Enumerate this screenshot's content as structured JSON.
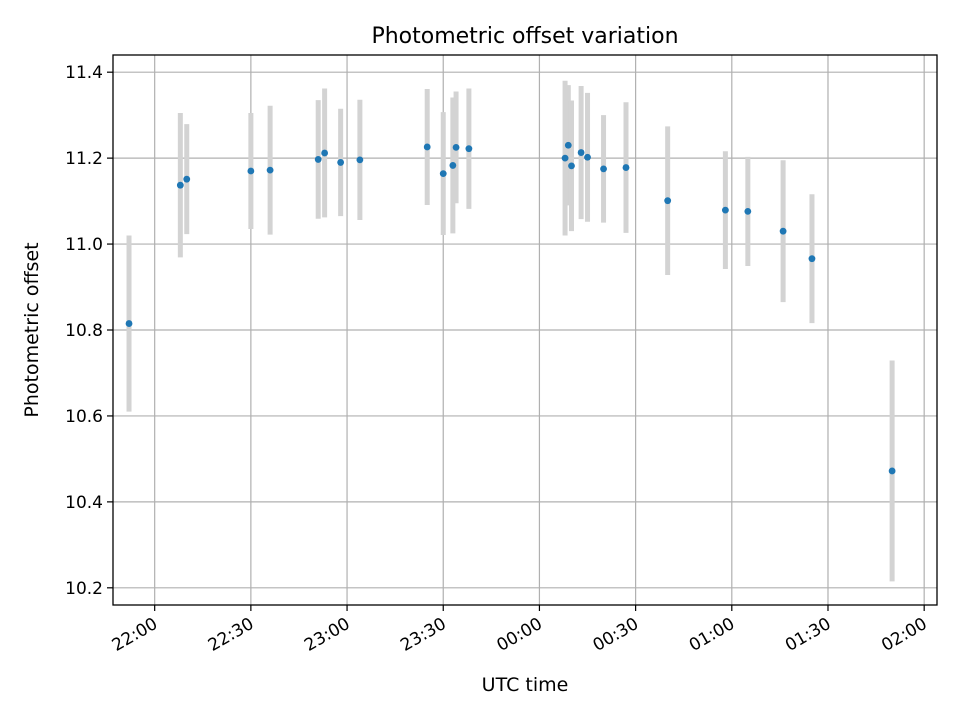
{
  "chart_data": {
    "type": "scatter",
    "title": "Photometric offset variation",
    "xlabel": "UTC time",
    "ylabel": "Photometric offset",
    "xlim": [
      "21:47",
      "02:04"
    ],
    "ylim": [
      10.16,
      11.44
    ],
    "x_ticks": [
      "22:00",
      "22:30",
      "23:00",
      "23:30",
      "00:00",
      "00:30",
      "01:00",
      "01:30",
      "02:00"
    ],
    "y_ticks": [
      "10.2",
      "10.4",
      "10.6",
      "10.8",
      "11.0",
      "11.2",
      "11.4"
    ],
    "grid": true,
    "colors": {
      "marker": "#1f77b4",
      "errorbar": "#d3d3d3"
    },
    "points": [
      {
        "time": "21:52",
        "y": 10.815,
        "err": 0.205
      },
      {
        "time": "22:08",
        "y": 11.137,
        "err": 0.168
      },
      {
        "time": "22:10",
        "y": 11.151,
        "err": 0.128
      },
      {
        "time": "22:30",
        "y": 11.17,
        "err": 0.135
      },
      {
        "time": "22:36",
        "y": 11.172,
        "err": 0.15
      },
      {
        "time": "22:51",
        "y": 11.197,
        "err": 0.138
      },
      {
        "time": "22:53",
        "y": 11.212,
        "err": 0.15
      },
      {
        "time": "22:58",
        "y": 11.19,
        "err": 0.125
      },
      {
        "time": "23:04",
        "y": 11.196,
        "err": 0.14
      },
      {
        "time": "23:25",
        "y": 11.226,
        "err": 0.135
      },
      {
        "time": "23:30",
        "y": 11.164,
        "err": 0.143
      },
      {
        "time": "23:33",
        "y": 11.183,
        "err": 0.158
      },
      {
        "time": "23:34",
        "y": 11.225,
        "err": 0.13
      },
      {
        "time": "23:38",
        "y": 11.222,
        "err": 0.14
      },
      {
        "time": "00:08",
        "y": 11.2,
        "err": 0.18
      },
      {
        "time": "00:09",
        "y": 11.23,
        "err": 0.14
      },
      {
        "time": "00:10",
        "y": 11.182,
        "err": 0.152
      },
      {
        "time": "00:13",
        "y": 11.213,
        "err": 0.155
      },
      {
        "time": "00:15",
        "y": 11.202,
        "err": 0.15
      },
      {
        "time": "00:20",
        "y": 11.175,
        "err": 0.125
      },
      {
        "time": "00:27",
        "y": 11.178,
        "err": 0.152
      },
      {
        "time": "00:40",
        "y": 11.101,
        "err": 0.173
      },
      {
        "time": "00:58",
        "y": 11.079,
        "err": 0.137
      },
      {
        "time": "01:05",
        "y": 11.076,
        "err": 0.127
      },
      {
        "time": "01:16",
        "y": 11.03,
        "err": 0.165
      },
      {
        "time": "01:25",
        "y": 10.966,
        "err": 0.15
      },
      {
        "time": "01:50",
        "y": 10.472,
        "err": 0.257
      }
    ]
  }
}
